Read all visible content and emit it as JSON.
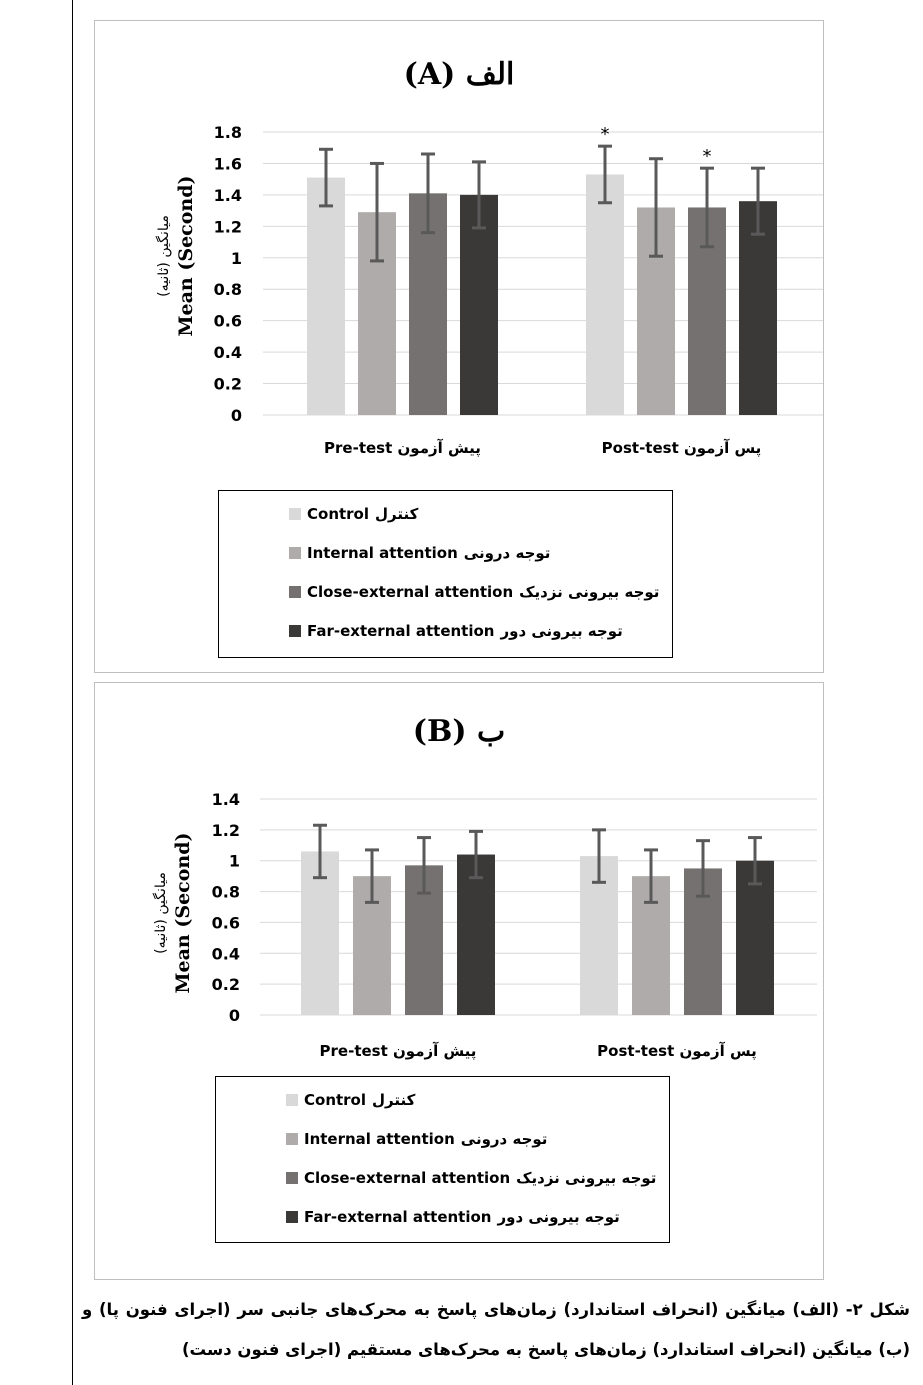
{
  "chart_data": [
    {
      "type": "bar",
      "title": "الف (A)",
      "ylabel": "Mean (Second)",
      "ylabel_fa": "میانگین (ثانیه)",
      "ylim": [
        0,
        1.8
      ],
      "yticks": [
        "0",
        "0.2",
        "0.4",
        "0.6",
        "0.8",
        "1",
        "1.2",
        "1.4",
        "1.6",
        "1.8"
      ],
      "categories": [
        "پیش آزمون Pre-test",
        "پس آزمون Post-test"
      ],
      "series": [
        {
          "name": "کنترل Control",
          "values": [
            1.51,
            1.53
          ],
          "errors": [
            0.18,
            0.18
          ],
          "sig": [
            false,
            true
          ]
        },
        {
          "name": "توجه درونی Internal attention",
          "values": [
            1.29,
            1.32
          ],
          "errors": [
            0.31,
            0.31
          ],
          "sig": [
            false,
            false
          ]
        },
        {
          "name": "توجه بیرونی نزدیک Close-external attention",
          "values": [
            1.41,
            1.32
          ],
          "errors": [
            0.25,
            0.25
          ],
          "sig": [
            false,
            true
          ]
        },
        {
          "name": "توجه بیرونی دور Far-external attention",
          "values": [
            1.4,
            1.36
          ],
          "errors": [
            0.21,
            0.21
          ],
          "sig": [
            false,
            false
          ]
        }
      ],
      "significance_marker": "*",
      "grid": true,
      "legend": "bottom"
    },
    {
      "type": "bar",
      "title": "ب (B)",
      "ylabel": "Mean (Second)",
      "ylabel_fa": "میانگین (ثانیه)",
      "ylim": [
        0,
        1.4
      ],
      "yticks": [
        "0",
        "0.2",
        "0.4",
        "0.6",
        "0.8",
        "1",
        "1.2",
        "1.4"
      ],
      "categories": [
        "پیش آزمون Pre-test",
        "پس آزمون Post-test"
      ],
      "series": [
        {
          "name": "کنترل Control",
          "values": [
            1.06,
            1.03
          ],
          "errors": [
            0.17,
            0.17
          ]
        },
        {
          "name": "توجه درونی Internal attention",
          "values": [
            0.9,
            0.9
          ],
          "errors": [
            0.17,
            0.17
          ]
        },
        {
          "name": "توجه بیرونی نزدیک Close-external attention",
          "values": [
            0.97,
            0.95
          ],
          "errors": [
            0.18,
            0.18
          ]
        },
        {
          "name": "توجه بیرونی دور Far-external attention",
          "values": [
            1.04,
            1.0
          ],
          "errors": [
            0.15,
            0.15
          ]
        }
      ],
      "grid": true,
      "legend": "bottom"
    }
  ],
  "colors": {
    "series": [
      "#d9d9d9",
      "#afabab",
      "#767171",
      "#3b3838"
    ],
    "error_bar": "#595959",
    "grid": "#d9d9d9"
  },
  "legend_items": [
    {
      "en": "Control",
      "fa": "کنترل"
    },
    {
      "en": "Internal attention",
      "fa": "توجه درونی"
    },
    {
      "en": "Close-external attention",
      "fa": "توجه بیرونی نزدیک"
    },
    {
      "en": "Far-external attention",
      "fa": "توجه بیرونی دور"
    }
  ],
  "caption": "شکل ۲- (الف) میانگین (انحراف استاندارد) زمان‌های پاسخ به محرک‌های جانبی سر (اجرای فنون پا) و (ب) میانگین (انحراف استاندارد) زمان‌های پاسخ به محرک‌های مستقیم (اجرای فنون دست)"
}
